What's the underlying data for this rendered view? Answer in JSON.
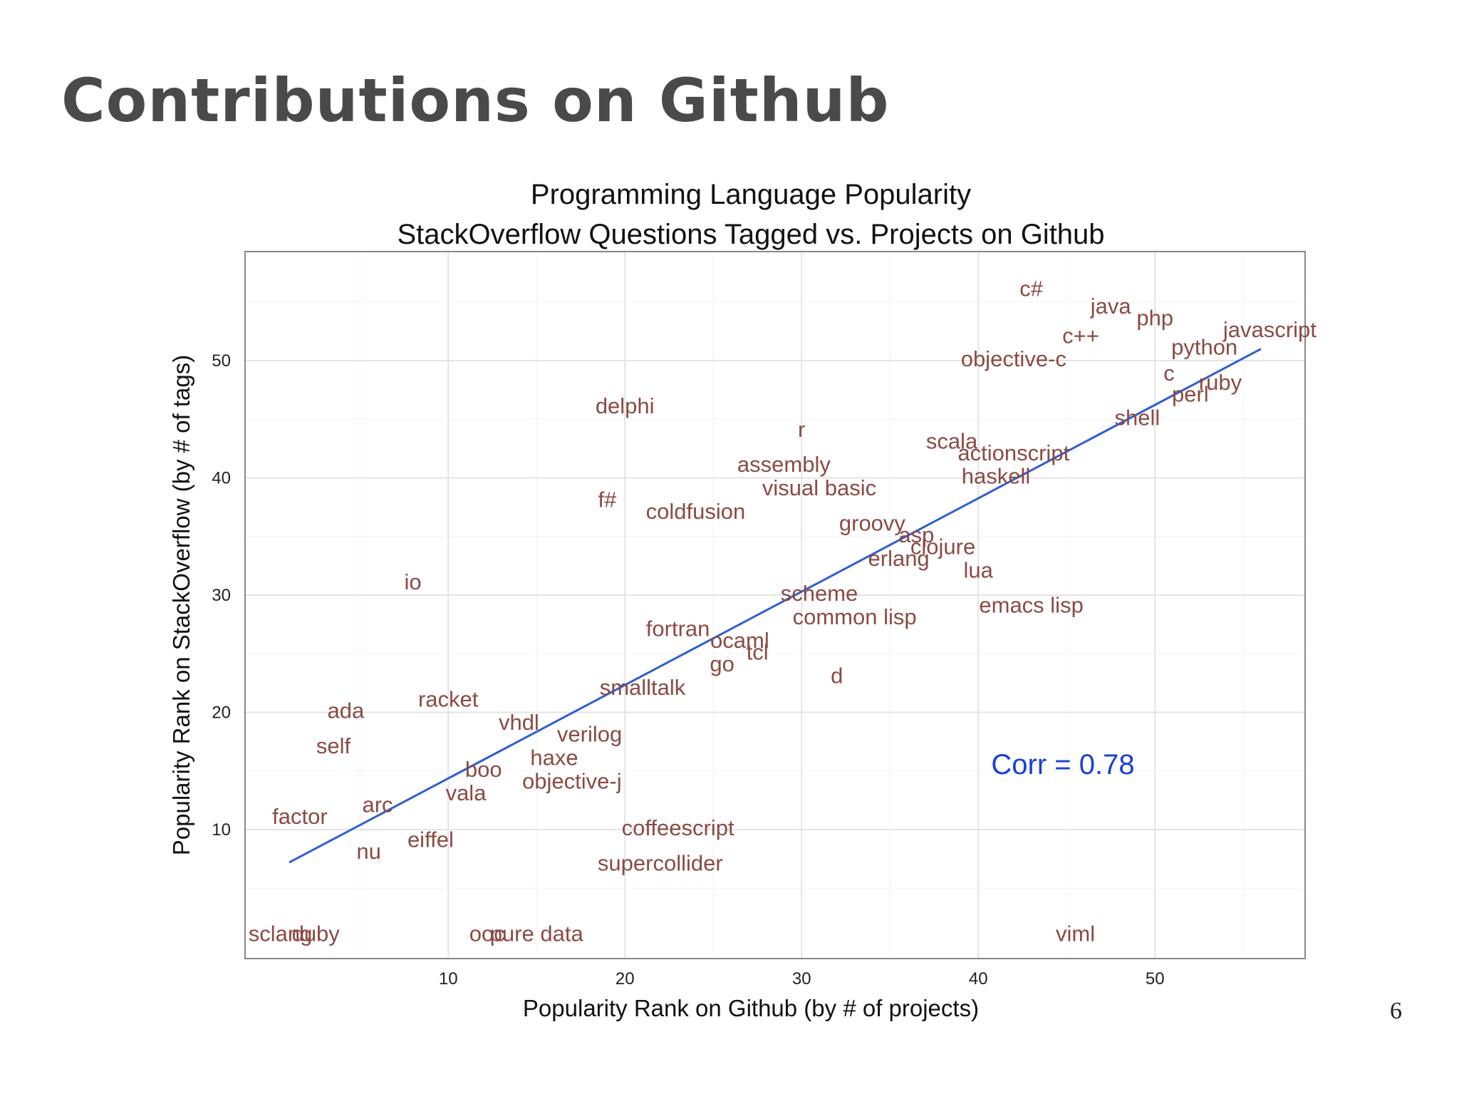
{
  "slide": {
    "title": "Contributions on Github",
    "page_number": "6"
  },
  "colors": {
    "label": "#8b4a44",
    "trend": "#2f5fd0",
    "annotation": "#1a3fd6",
    "grid_major": "#e4e4e4",
    "grid_minor": "#f2f2f2",
    "panel_border": "#888888"
  },
  "chart_data": {
    "type": "scatter",
    "title_lines": [
      "Programming Language Popularity",
      "StackOverflow Questions Tagged vs. Projects on Github"
    ],
    "xlabel": "Popularity Rank on Github (by # of projects)",
    "ylabel": "Popularity Rank on StackOverflow (by # of tags)",
    "xlim": [
      -1.5,
      58.5
    ],
    "ylim": [
      -1,
      59.3
    ],
    "x_ticks": [
      10,
      20,
      30,
      40,
      50
    ],
    "y_ticks": [
      10,
      20,
      30,
      40,
      50
    ],
    "grid": true,
    "points": [
      {
        "label": "c#",
        "x": 43.0,
        "y": 56.0
      },
      {
        "label": "java",
        "x": 47.5,
        "y": 54.5
      },
      {
        "label": "php",
        "x": 50.0,
        "y": 53.5
      },
      {
        "label": "javascript",
        "x": 56.5,
        "y": 52.5
      },
      {
        "label": "c++",
        "x": 45.8,
        "y": 52.0
      },
      {
        "label": "python",
        "x": 52.8,
        "y": 51.0
      },
      {
        "label": "objective-c",
        "x": 42.0,
        "y": 50.0
      },
      {
        "label": "c",
        "x": 50.8,
        "y": 48.8
      },
      {
        "label": "ruby",
        "x": 53.7,
        "y": 48.0
      },
      {
        "label": "perl",
        "x": 52.0,
        "y": 47.0
      },
      {
        "label": "delphi",
        "x": 20.0,
        "y": 46.0
      },
      {
        "label": "shell",
        "x": 49.0,
        "y": 45.0
      },
      {
        "label": "r",
        "x": 30.0,
        "y": 44.0
      },
      {
        "label": "scala",
        "x": 38.5,
        "y": 43.0
      },
      {
        "label": "actionscript",
        "x": 42.0,
        "y": 42.0
      },
      {
        "label": "assembly",
        "x": 29.0,
        "y": 41.0
      },
      {
        "label": "haskell",
        "x": 41.0,
        "y": 40.0
      },
      {
        "label": "visual basic",
        "x": 31.0,
        "y": 39.0
      },
      {
        "label": "f#",
        "x": 19.0,
        "y": 38.0
      },
      {
        "label": "coldfusion",
        "x": 24.0,
        "y": 37.0
      },
      {
        "label": "groovy",
        "x": 34.0,
        "y": 36.0
      },
      {
        "label": "asp",
        "x": 36.5,
        "y": 35.0
      },
      {
        "label": "clojure",
        "x": 38.0,
        "y": 34.0
      },
      {
        "label": "erlang",
        "x": 35.5,
        "y": 33.0
      },
      {
        "label": "lua",
        "x": 40.0,
        "y": 32.0
      },
      {
        "label": "io",
        "x": 8.0,
        "y": 31.0
      },
      {
        "label": "scheme",
        "x": 31.0,
        "y": 30.0
      },
      {
        "label": "emacs lisp",
        "x": 43.0,
        "y": 29.0
      },
      {
        "label": "common lisp",
        "x": 33.0,
        "y": 28.0
      },
      {
        "label": "fortran",
        "x": 23.0,
        "y": 27.0
      },
      {
        "label": "ocaml",
        "x": 26.5,
        "y": 26.0
      },
      {
        "label": "tcl",
        "x": 27.5,
        "y": 25.0
      },
      {
        "label": "go",
        "x": 25.5,
        "y": 24.0
      },
      {
        "label": "d",
        "x": 32.0,
        "y": 23.0
      },
      {
        "label": "smalltalk",
        "x": 21.0,
        "y": 22.0
      },
      {
        "label": "racket",
        "x": 10.0,
        "y": 21.0
      },
      {
        "label": "ada",
        "x": 4.2,
        "y": 20.0
      },
      {
        "label": "vhdl",
        "x": 14.0,
        "y": 19.0
      },
      {
        "label": "verilog",
        "x": 18.0,
        "y": 18.0
      },
      {
        "label": "self",
        "x": 3.5,
        "y": 17.0
      },
      {
        "label": "haxe",
        "x": 16.0,
        "y": 16.0
      },
      {
        "label": "boo",
        "x": 12.0,
        "y": 15.0
      },
      {
        "label": "objective-j",
        "x": 17.0,
        "y": 14.0
      },
      {
        "label": "vala",
        "x": 11.0,
        "y": 13.0
      },
      {
        "label": "arc",
        "x": 6.0,
        "y": 12.0
      },
      {
        "label": "factor",
        "x": 1.6,
        "y": 11.0
      },
      {
        "label": "coffeescript",
        "x": 23.0,
        "y": 10.0
      },
      {
        "label": "eiffel",
        "x": 9.0,
        "y": 9.0
      },
      {
        "label": "nu",
        "x": 5.5,
        "y": 8.0
      },
      {
        "label": "supercollider",
        "x": 22.0,
        "y": 7.0
      },
      {
        "label": "sclang",
        "x": 0.5,
        "y": 1.0
      },
      {
        "label": "duby",
        "x": 2.5,
        "y": 1.0
      },
      {
        "label": "ooc",
        "x": 12.2,
        "y": 1.0
      },
      {
        "label": "pure data",
        "x": 15.0,
        "y": 1.0
      },
      {
        "label": "viml",
        "x": 45.5,
        "y": 1.0
      }
    ],
    "trend_line": {
      "x": [
        1.0,
        56.0
      ],
      "y": [
        7.2,
        51.0
      ]
    },
    "annotation": "Corr =  0.78"
  }
}
